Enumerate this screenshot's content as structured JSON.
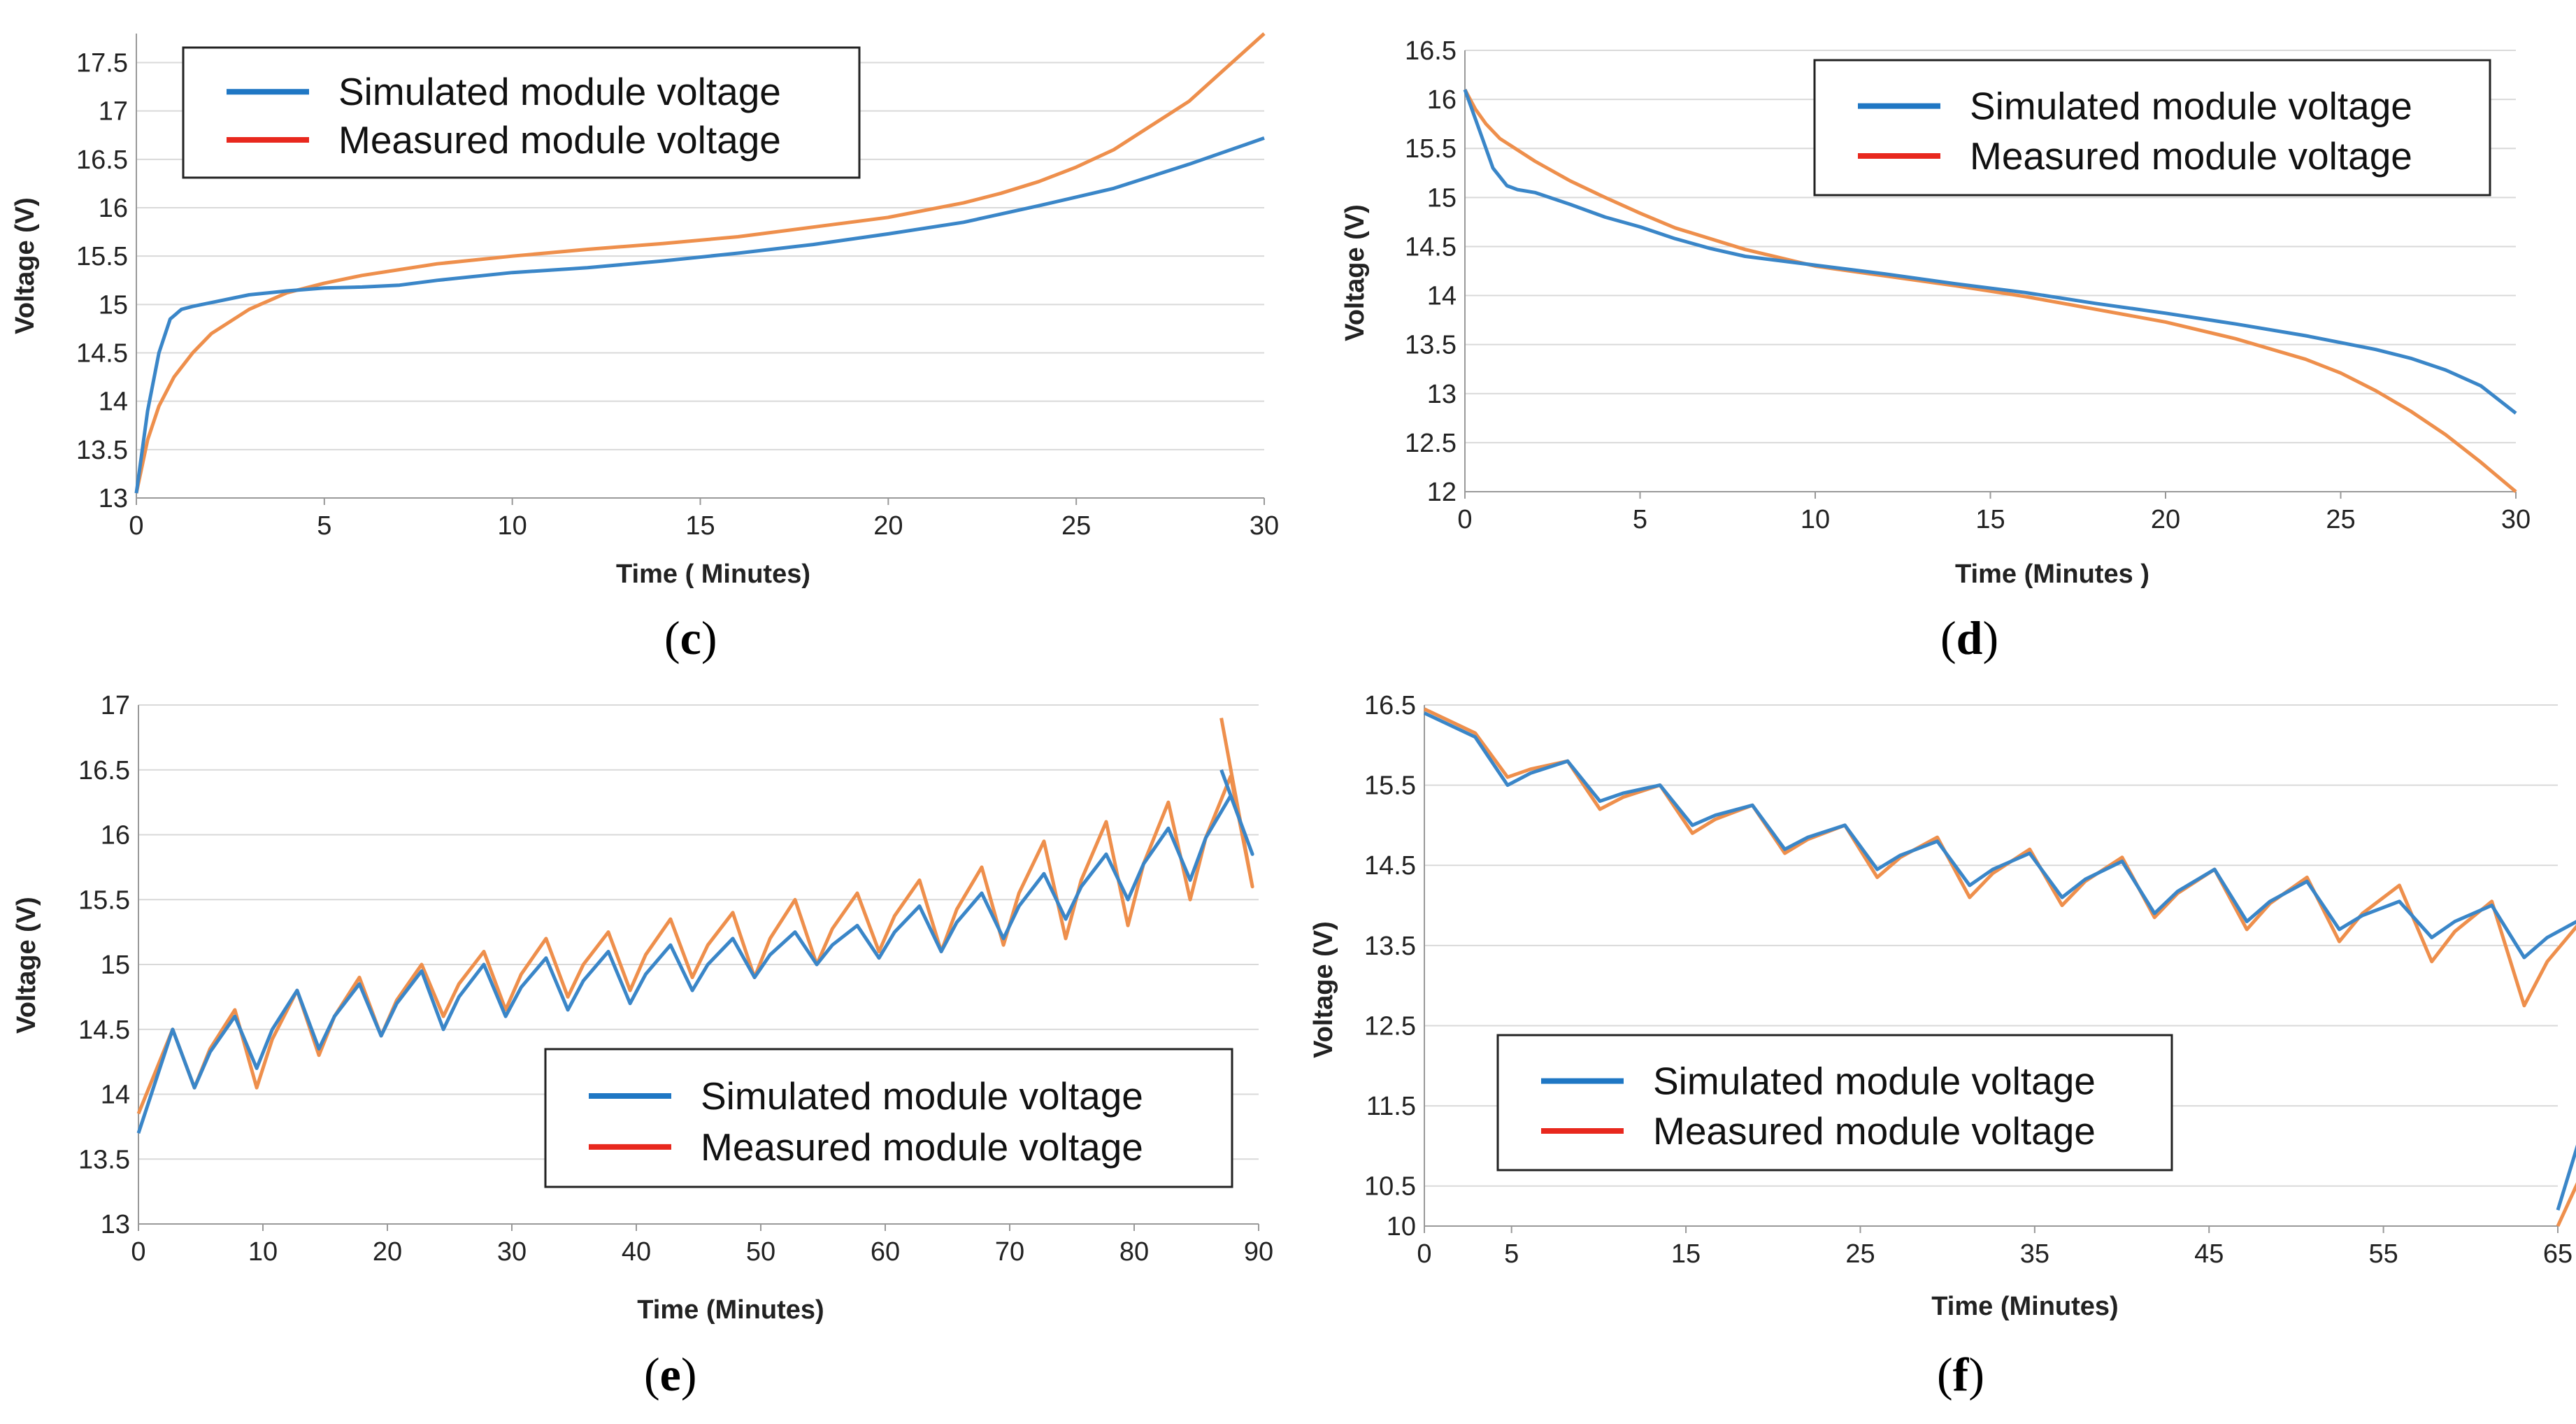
{
  "colors": {
    "simulated_line": "#3a86c8",
    "measured_line": "#ee8f4c",
    "legend_simulated": "#1f77c4",
    "legend_measured": "#e8281e",
    "grid": "#d9d9d9",
    "axis": "#999999"
  },
  "chart_data": [
    {
      "id": "c",
      "type": "line",
      "panel_label": "c",
      "xlabel": "Time ( Minutes)",
      "ylabel": "Voltage (V)",
      "xlim": [
        0,
        30
      ],
      "ylim": [
        13,
        17.8
      ],
      "xticks": [
        "0",
        "5",
        "10",
        "15",
        "20",
        "25",
        "30"
      ],
      "yticks": [
        "13",
        "13.5",
        "14",
        "14.5",
        "15",
        "15.5",
        "16",
        "16.5",
        "17",
        "17.5"
      ],
      "legend": [
        "Simulated module voltage",
        "Measured module voltage"
      ],
      "legend_position": "top-left",
      "series": [
        {
          "name": "Simulated module voltage",
          "x": [
            0,
            0.3,
            0.6,
            0.9,
            1.2,
            1.5,
            2,
            3,
            4,
            5,
            6,
            7,
            8,
            10,
            12,
            14,
            16,
            18,
            20,
            22,
            24,
            26,
            28,
            30
          ],
          "y": [
            13.05,
            13.9,
            14.5,
            14.85,
            14.95,
            14.98,
            15.02,
            15.1,
            15.14,
            15.17,
            15.18,
            15.2,
            15.25,
            15.33,
            15.38,
            15.45,
            15.53,
            15.62,
            15.73,
            15.85,
            16.02,
            16.2,
            16.45,
            16.72
          ]
        },
        {
          "name": "Measured module voltage",
          "x": [
            0,
            0.3,
            0.6,
            1,
            1.5,
            2,
            3,
            4,
            5,
            6,
            8,
            10,
            12,
            14,
            16,
            18,
            20,
            22,
            23,
            24,
            25,
            26,
            27,
            28,
            29,
            30
          ],
          "y": [
            13.05,
            13.6,
            13.95,
            14.25,
            14.5,
            14.7,
            14.95,
            15.12,
            15.22,
            15.3,
            15.42,
            15.5,
            15.57,
            15.63,
            15.7,
            15.8,
            15.9,
            16.05,
            16.15,
            16.27,
            16.42,
            16.6,
            16.85,
            17.1,
            17.45,
            17.8
          ]
        }
      ]
    },
    {
      "id": "d",
      "type": "line",
      "panel_label": "d",
      "xlabel": "Time (Minutes )",
      "ylabel": "Voltage (V)",
      "xlim": [
        0,
        30
      ],
      "ylim": [
        12,
        16.5
      ],
      "xticks": [
        "0",
        "5",
        "10",
        "15",
        "20",
        "25",
        "30"
      ],
      "yticks": [
        "12",
        "12.5",
        "13",
        "13.5",
        "14",
        "14.5",
        "15",
        "15.5",
        "16",
        "16.5"
      ],
      "legend": [
        "Simulated module voltage",
        "Measured module voltage"
      ],
      "legend_position": "top-right",
      "series": [
        {
          "name": "Simulated module voltage",
          "x": [
            0,
            0.2,
            0.5,
            0.8,
            1.2,
            1.5,
            2,
            3,
            4,
            5,
            6,
            7,
            8,
            10,
            12,
            14,
            16,
            18,
            20,
            22,
            24,
            26,
            27,
            28,
            29,
            30
          ],
          "y": [
            16.1,
            15.9,
            15.6,
            15.3,
            15.12,
            15.08,
            15.05,
            14.93,
            14.8,
            14.7,
            14.58,
            14.48,
            14.4,
            14.31,
            14.22,
            14.12,
            14.03,
            13.92,
            13.82,
            13.71,
            13.59,
            13.45,
            13.36,
            13.24,
            13.08,
            12.8
          ]
        },
        {
          "name": "Measured module voltage",
          "x": [
            0,
            0.3,
            0.6,
            1,
            2,
            3,
            4,
            5,
            6,
            8,
            10,
            12,
            14,
            16,
            18,
            20,
            22,
            24,
            25,
            26,
            27,
            28,
            29,
            30
          ],
          "y": [
            16.1,
            15.9,
            15.75,
            15.6,
            15.37,
            15.17,
            15,
            14.84,
            14.69,
            14.47,
            14.3,
            14.2,
            14.1,
            13.99,
            13.86,
            13.73,
            13.56,
            13.35,
            13.21,
            13.03,
            12.82,
            12.58,
            12.3,
            12
          ]
        }
      ]
    },
    {
      "id": "e",
      "type": "line",
      "panel_label": "e",
      "xlabel": "Time (Minutes)",
      "ylabel": "Voltage (V)",
      "xlim": [
        0,
        90
      ],
      "ylim": [
        13,
        17
      ],
      "xticks": [
        "0",
        "10",
        "20",
        "30",
        "40",
        "50",
        "60",
        "70",
        "80",
        "90"
      ],
      "yticks": [
        "13",
        "13.5",
        "14",
        "14.5",
        "15",
        "15.5",
        "16",
        "16.5",
        "17"
      ],
      "legend": [
        "Simulated module voltage",
        "Measured module voltage"
      ],
      "legend_position": "bottom-right",
      "pulse_period": 5,
      "pulse_count": 17,
      "series": [
        {
          "name": "Simulated module voltage",
          "start": [
            0,
            13.7
          ],
          "peaks": [
            14.5,
            14.6,
            14.8,
            14.85,
            14.95,
            15.0,
            15.05,
            15.1,
            15.15,
            15.2,
            15.25,
            15.3,
            15.45,
            15.55,
            15.7,
            15.85,
            16.05,
            16.3
          ],
          "troughs": [
            14.05,
            14.2,
            14.35,
            14.45,
            14.5,
            14.6,
            14.65,
            14.7,
            14.8,
            14.9,
            15.0,
            15.05,
            15.1,
            15.2,
            15.35,
            15.5,
            15.65,
            15.85
          ],
          "end": [
            87,
            16.5
          ]
        },
        {
          "name": "Measured module voltage",
          "start": [
            0,
            13.85
          ],
          "peaks": [
            14.5,
            14.65,
            14.8,
            14.9,
            15.0,
            15.1,
            15.2,
            15.25,
            15.35,
            15.4,
            15.5,
            15.55,
            15.65,
            15.75,
            15.95,
            16.1,
            16.25,
            16.45
          ],
          "troughs": [
            14.05,
            14.05,
            14.3,
            14.45,
            14.6,
            14.65,
            14.75,
            14.8,
            14.9,
            14.9,
            15.0,
            15.1,
            15.1,
            15.15,
            15.2,
            15.3,
            15.5,
            15.6
          ],
          "end": [
            87,
            16.9
          ]
        }
      ]
    },
    {
      "id": "f",
      "type": "line",
      "panel_label": "f",
      "xlabel": "Time (Minutes)",
      "ylabel": "Voltage (V)",
      "xlim": [
        0,
        65
      ],
      "ylim": [
        10,
        16.5
      ],
      "xticks": [
        "0",
        "5",
        "15",
        "25",
        "35",
        "45",
        "55",
        "65"
      ],
      "xtick_values": [
        0,
        5,
        15,
        25,
        35,
        45,
        55,
        65
      ],
      "yticks": [
        "10",
        "10.5",
        "11.5",
        "12.5",
        "13.5",
        "14.5",
        "15.5",
        "16.5"
      ],
      "ytick_values": [
        10,
        10.5,
        11.5,
        12.5,
        13.5,
        14.5,
        15.5,
        16.5
      ],
      "legend": [
        "Simulated module voltage",
        "Measured module voltage"
      ],
      "legend_position": "bottom-left",
      "pulse_period": 5.3,
      "pulse_count": 12,
      "series": [
        {
          "name": "Simulated module voltage",
          "start": [
            0,
            16.4
          ],
          "peaks": [
            16.1,
            15.8,
            15.5,
            15.25,
            15.0,
            14.8,
            14.65,
            14.55,
            14.45,
            14.3,
            14.05,
            14.0,
            13.85
          ],
          "troughs": [
            15.5,
            15.3,
            15.0,
            14.7,
            14.45,
            14.25,
            14.1,
            13.9,
            13.8,
            13.7,
            13.6,
            13.35,
            12.6
          ],
          "end": [
            65,
            10.2
          ]
        },
        {
          "name": "Measured module voltage",
          "start": [
            0,
            16.45
          ],
          "peaks": [
            16.15,
            15.8,
            15.5,
            15.25,
            15.0,
            14.85,
            14.7,
            14.6,
            14.45,
            14.35,
            14.25,
            14.05,
            13.85
          ],
          "troughs": [
            15.6,
            15.2,
            14.9,
            14.65,
            14.35,
            14.1,
            14.0,
            13.85,
            13.7,
            13.55,
            13.3,
            12.75,
            11.6
          ],
          "end": [
            65,
            10.0
          ]
        }
      ]
    }
  ]
}
